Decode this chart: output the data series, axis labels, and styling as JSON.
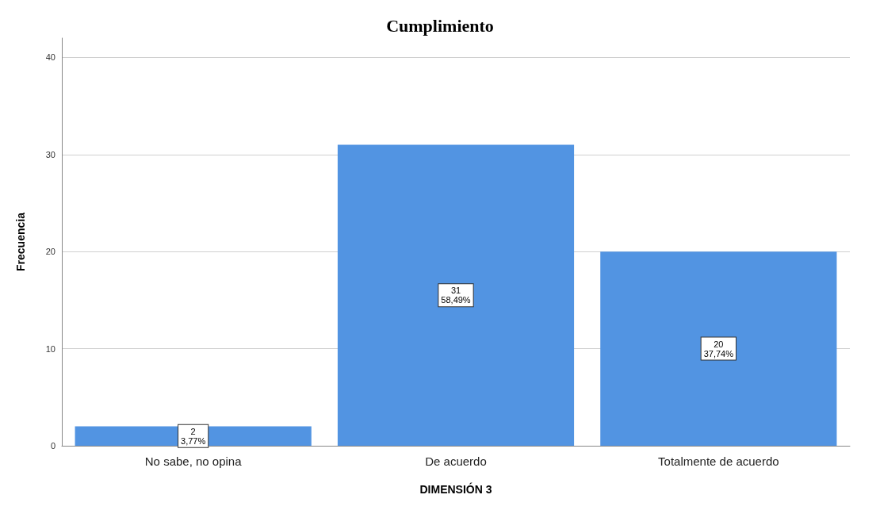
{
  "chart_data": {
    "type": "bar",
    "title": "Cumplimiento",
    "xlabel": "DIMENSIÓN 3",
    "ylabel": "Frecuencia",
    "categories": [
      "No sabe, no opina",
      "De acuerdo",
      "Totalmente de acuerdo"
    ],
    "values": [
      2,
      31,
      20
    ],
    "color": "#5294e2",
    "value_labels": [
      "2\n3,77%",
      "31\n58,49%",
      "20\n37,74%"
    ],
    "ylim": [
      0,
      42
    ],
    "yticks": [
      0,
      10,
      20,
      30,
      40
    ],
    "grid": "y"
  }
}
